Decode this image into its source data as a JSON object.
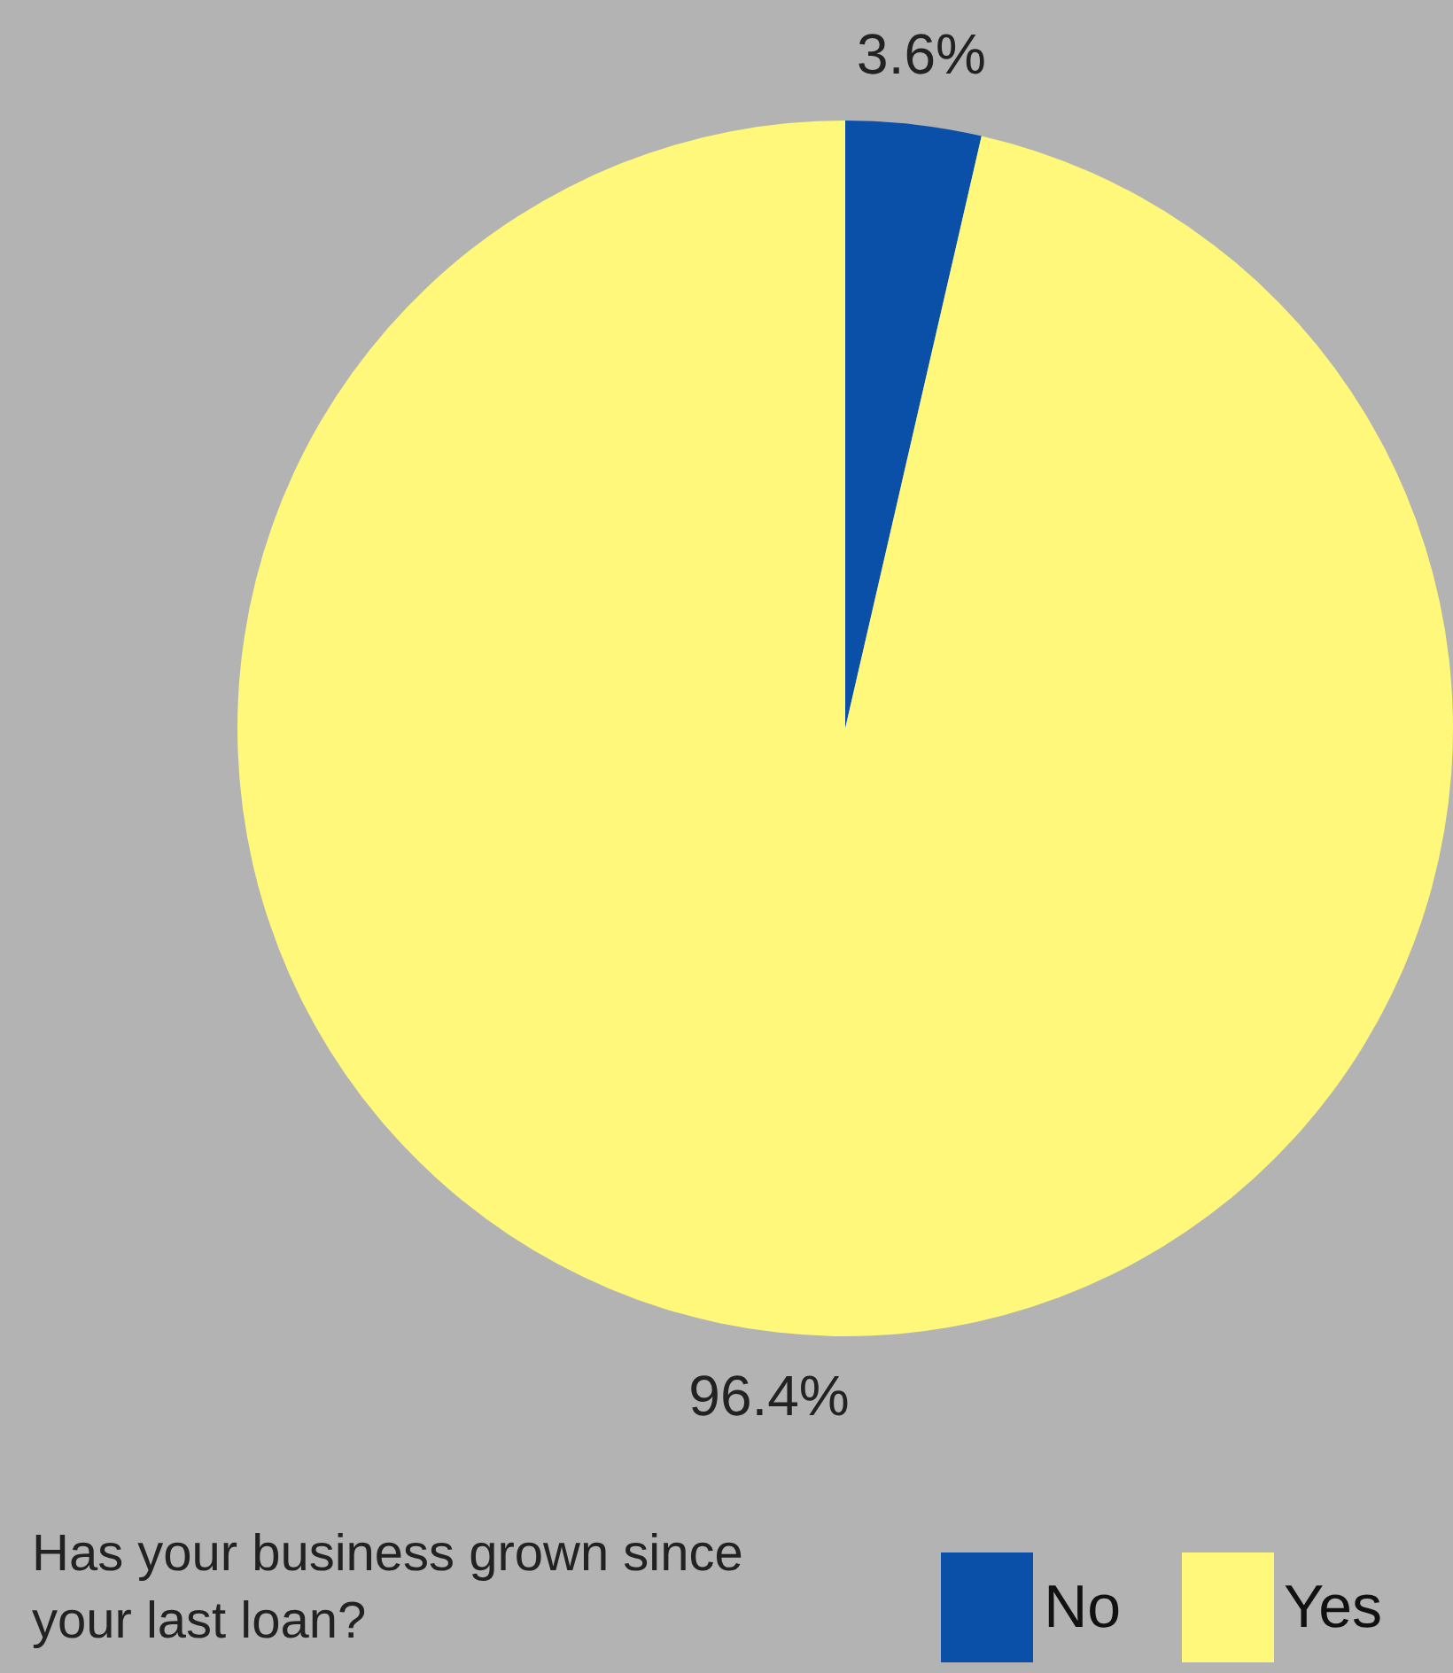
{
  "chart_data": {
    "type": "pie",
    "title": "Has your business grown since your last loan?",
    "categories": [
      "No",
      "Yes"
    ],
    "values": [
      3.6,
      96.4
    ],
    "colors": [
      "#0a4fa8",
      "#fff87a"
    ],
    "value_labels": [
      "3.6%",
      "96.4%"
    ],
    "legend": "bottom right"
  }
}
